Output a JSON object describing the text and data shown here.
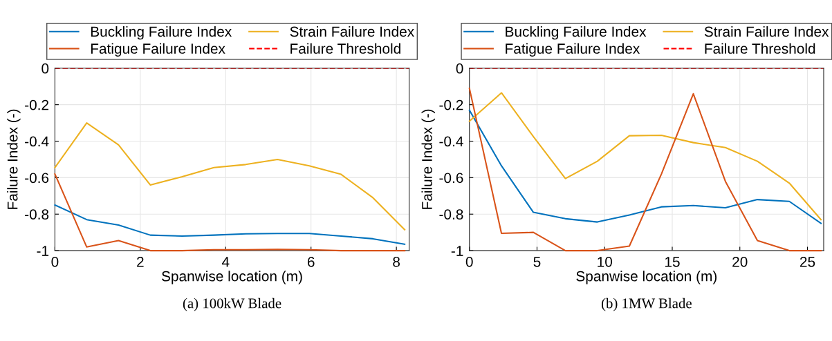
{
  "chart_data": [
    {
      "type": "line",
      "xlabel": "Spanwise location (m)",
      "ylabel": "Failure Index (-)",
      "annotations": [
        "(a) 100kW Blade"
      ],
      "x": [
        0,
        0.745,
        1.49,
        2.235,
        2.98,
        3.725,
        4.47,
        5.215,
        5.96,
        6.705,
        7.45,
        8.195
      ],
      "xlim": [
        0,
        8.3
      ],
      "xticks": [
        0,
        2,
        4,
        6,
        8
      ],
      "ylim": [
        -1,
        0
      ],
      "yticks": [
        -1,
        -0.8,
        -0.6,
        -0.4,
        -0.2,
        0
      ],
      "series": [
        {
          "name": "Buckling Failure Index",
          "color": "#0072bd",
          "values": [
            -0.75,
            -0.83,
            -0.86,
            -0.915,
            -0.92,
            -0.915,
            -0.908,
            -0.906,
            -0.906,
            -0.92,
            -0.935,
            -0.965
          ]
        },
        {
          "name": "Strain Failure Index",
          "color": "#edb120",
          "values": [
            -0.545,
            -0.3,
            -0.42,
            -0.64,
            -0.595,
            -0.545,
            -0.528,
            -0.5,
            -0.535,
            -0.582,
            -0.71,
            -0.885
          ]
        },
        {
          "name": "Fatigue Failure Index",
          "color": "#d95319",
          "values": [
            -0.58,
            -0.98,
            -0.945,
            -1.0,
            -1.0,
            -0.995,
            -0.995,
            -0.993,
            -0.995,
            -1.0,
            -1.0,
            -1.0
          ]
        }
      ],
      "ref_lines": [
        {
          "axis": "y",
          "value": 0,
          "label": "Failure Threshold",
          "color": "#ff0000",
          "line_style": "dashed"
        }
      ],
      "grid": true,
      "legend": "top",
      "line_style": "solid",
      "marker": "none"
    },
    {
      "type": "line",
      "xlabel": "Spanwise location (m)",
      "ylabel": "Failure Index (-)",
      "annotations": [
        "(b) 1MW Blade"
      ],
      "x": [
        0,
        2.37,
        4.73,
        7.1,
        9.46,
        11.83,
        14.2,
        16.56,
        18.93,
        21.3,
        23.66,
        26.0
      ],
      "xlim": [
        0,
        26.2
      ],
      "xticks": [
        0,
        5,
        10,
        15,
        20,
        25
      ],
      "ylim": [
        -1,
        0
      ],
      "yticks": [
        -1,
        -0.8,
        -0.6,
        -0.4,
        -0.2,
        0
      ],
      "series": [
        {
          "name": "Buckling Failure Index",
          "color": "#0072bd",
          "values": [
            -0.23,
            -0.535,
            -0.79,
            -0.825,
            -0.843,
            -0.805,
            -0.76,
            -0.753,
            -0.765,
            -0.72,
            -0.73,
            -0.85
          ]
        },
        {
          "name": "Strain Failure Index",
          "color": "#edb120",
          "values": [
            -0.29,
            -0.135,
            -0.375,
            -0.605,
            -0.51,
            -0.37,
            -0.368,
            -0.408,
            -0.435,
            -0.51,
            -0.63,
            -0.83
          ]
        },
        {
          "name": "Fatigue Failure Index",
          "color": "#d95319",
          "values": [
            -0.11,
            -0.905,
            -0.9,
            -1.0,
            -1.0,
            -0.975,
            -0.58,
            -0.14,
            -0.62,
            -0.945,
            -1.0,
            -1.0
          ]
        }
      ],
      "ref_lines": [
        {
          "axis": "y",
          "value": 0,
          "label": "Failure Threshold",
          "color": "#ff0000",
          "line_style": "dashed"
        }
      ],
      "grid": true,
      "legend": "top",
      "line_style": "solid",
      "marker": "none"
    }
  ]
}
